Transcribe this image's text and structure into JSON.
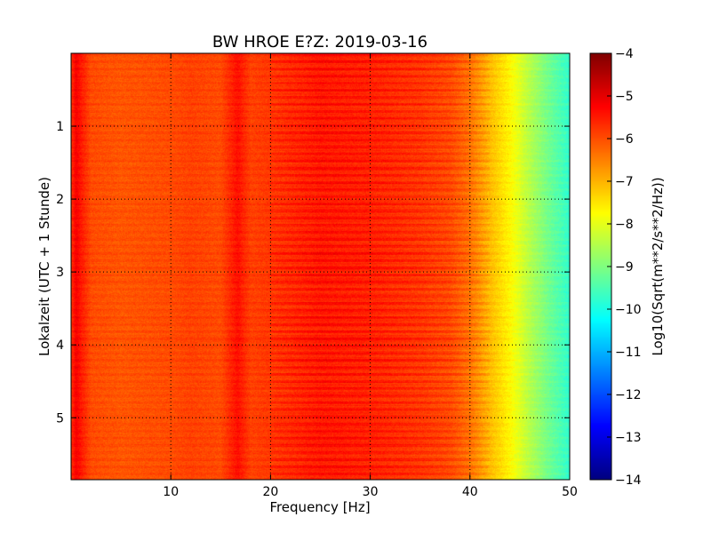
{
  "chart_data": {
    "type": "heatmap",
    "title": "BW HROE E?Z: 2019-03-16",
    "xlabel": "Frequency [Hz]",
    "ylabel": "Lokalzeit (UTC + 1 Stunde)",
    "xlim": [
      0,
      50
    ],
    "ylim": [
      5.85,
      0
    ],
    "x_ticks": [
      10,
      20,
      30,
      40,
      50
    ],
    "y_ticks": [
      1,
      2,
      3,
      4,
      5
    ],
    "grid": true,
    "colorbar": {
      "label": "Log10(Sqrt(m**2/s**2/Hz))",
      "range": [
        -14,
        -4
      ],
      "ticks": [
        -4,
        -5,
        -6,
        -7,
        -8,
        -9,
        -10,
        -11,
        -12,
        -13,
        -14
      ],
      "colormap": "jet"
    },
    "spectral_profile": {
      "frequency_hz": [
        0,
        0.5,
        1,
        2,
        5,
        10,
        12,
        15,
        16.7,
        18,
        20,
        25,
        30,
        35,
        38,
        40,
        42,
        44,
        46,
        48,
        50
      ],
      "log10_amplitude": [
        -5.8,
        -5.2,
        -5.5,
        -6.0,
        -6.1,
        -6.0,
        -5.9,
        -6.0,
        -5.4,
        -5.9,
        -5.8,
        -5.5,
        -5.6,
        -5.8,
        -6.0,
        -6.4,
        -7.1,
        -7.7,
        -8.5,
        -9.2,
        -9.8
      ]
    }
  }
}
